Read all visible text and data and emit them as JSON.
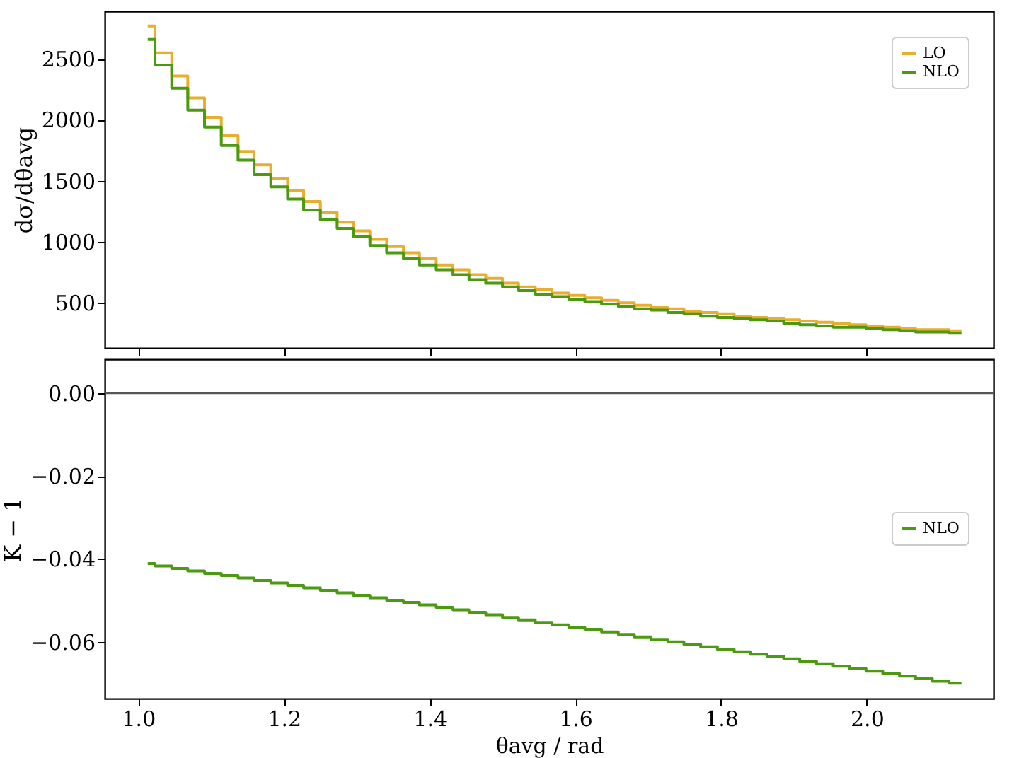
{
  "chart_data": [
    {
      "type": "histogram",
      "ylabel": "dσ/dθavg",
      "legend": "top right",
      "grid": false,
      "tick_labels": "y",
      "bins": [
        1.013,
        1.023,
        1.046,
        1.068,
        1.091,
        1.114,
        1.137,
        1.159,
        1.182,
        1.205,
        1.227,
        1.25,
        1.273,
        1.295,
        1.318,
        1.341,
        1.364,
        1.386,
        1.409,
        1.432,
        1.454,
        1.477,
        1.5,
        1.522,
        1.545,
        1.568,
        1.591,
        1.613,
        1.636,
        1.659,
        1.681,
        1.704,
        1.727,
        1.749,
        1.772,
        1.795,
        1.818,
        1.84,
        1.863,
        1.886,
        1.908,
        1.931,
        1.954,
        1.976,
        1.999,
        2.022,
        2.045,
        2.067,
        2.09,
        2.113,
        2.13
      ],
      "xlim": [
        0.954,
        2.174
      ],
      "xticks": [
        1,
        1.2,
        1.4,
        1.6,
        1.8,
        2
      ],
      "ylim": [
        130,
        2890
      ],
      "yticks": [
        500,
        1000,
        1500,
        2000,
        2500
      ],
      "series": [
        {
          "name": "LO",
          "color": "#e8ae2f",
          "values": [
            2770,
            2550,
            2360,
            2180,
            2020,
            1870,
            1740,
            1630,
            1520,
            1420,
            1330,
            1240,
            1160,
            1090,
            1020,
            960,
            910,
            860,
            810,
            770,
            730,
            700,
            660,
            630,
            610,
            580,
            560,
            540,
            520,
            500,
            480,
            460,
            450,
            430,
            420,
            410,
            390,
            380,
            370,
            360,
            350,
            340,
            330,
            320,
            310,
            300,
            290,
            280,
            280,
            270
          ]
        },
        {
          "name": "NLO",
          "color": "#4b9a12",
          "values": [
            2660,
            2450,
            2260,
            2080,
            1940,
            1790,
            1670,
            1550,
            1450,
            1350,
            1260,
            1180,
            1110,
            1040,
            970,
            910,
            860,
            810,
            770,
            730,
            690,
            660,
            630,
            600,
            570,
            550,
            530,
            510,
            490,
            470,
            450,
            440,
            420,
            410,
            390,
            380,
            370,
            360,
            350,
            330,
            320,
            310,
            300,
            300,
            290,
            280,
            270,
            260,
            260,
            250
          ]
        }
      ]
    },
    {
      "type": "histogram",
      "xlabel": "θavg / rad",
      "ylabel": "K − 1",
      "legend": "right",
      "grid": false,
      "bins": [
        1.013,
        1.023,
        1.046,
        1.068,
        1.091,
        1.114,
        1.137,
        1.159,
        1.182,
        1.205,
        1.227,
        1.25,
        1.273,
        1.295,
        1.318,
        1.341,
        1.364,
        1.386,
        1.409,
        1.432,
        1.454,
        1.477,
        1.5,
        1.522,
        1.545,
        1.568,
        1.591,
        1.613,
        1.636,
        1.659,
        1.681,
        1.704,
        1.727,
        1.749,
        1.772,
        1.795,
        1.818,
        1.84,
        1.863,
        1.886,
        1.908,
        1.931,
        1.954,
        1.976,
        1.999,
        2.022,
        2.045,
        2.067,
        2.09,
        2.113,
        2.13
      ],
      "xlim": [
        0.954,
        2.174
      ],
      "xticks": [
        {
          "value": 1,
          "label": "1.0"
        },
        1.2,
        1.4,
        1.6,
        1.8,
        {
          "value": 2,
          "label": "2.0"
        }
      ],
      "ylim": [
        -0.0737,
        0.0082
      ],
      "yticks": [
        {
          "value": 0,
          "label": "0.00"
        },
        {
          "value": -0.02,
          "label": "−0.02"
        },
        {
          "value": -0.04,
          "label": "−0.04"
        },
        {
          "value": -0.06,
          "label": "−0.06"
        }
      ],
      "ref_lines": [
        {
          "axis": "y",
          "value": 0,
          "color": "#555555"
        }
      ],
      "series": [
        {
          "name": "NLO",
          "color": "#4b9a12",
          "values": [
            -0.0411,
            -0.0417,
            -0.0423,
            -0.0429,
            -0.0435,
            -0.044,
            -0.0446,
            -0.0452,
            -0.0458,
            -0.0464,
            -0.047,
            -0.0476,
            -0.0482,
            -0.0488,
            -0.0494,
            -0.05,
            -0.0505,
            -0.0511,
            -0.0517,
            -0.0523,
            -0.0529,
            -0.0535,
            -0.0541,
            -0.0547,
            -0.0553,
            -0.0559,
            -0.0565,
            -0.057,
            -0.0576,
            -0.0582,
            -0.0588,
            -0.0594,
            -0.06,
            -0.0606,
            -0.0612,
            -0.0618,
            -0.0624,
            -0.063,
            -0.0635,
            -0.0641,
            -0.0647,
            -0.0653,
            -0.0659,
            -0.0665,
            -0.0671,
            -0.0677,
            -0.0683,
            -0.0689,
            -0.0695,
            -0.07
          ]
        }
      ]
    }
  ]
}
